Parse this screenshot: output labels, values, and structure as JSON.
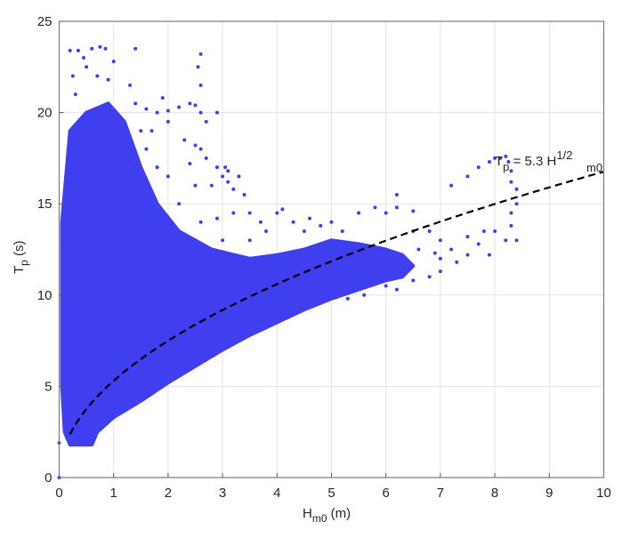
{
  "chart_data": {
    "type": "scatter",
    "title": "",
    "xlabel": {
      "main": "H",
      "sub": "m0",
      "unit": " (m)"
    },
    "ylabel": {
      "main": "T",
      "sub": "p",
      "unit": " (s)"
    },
    "xlim": [
      0,
      10
    ],
    "ylim": [
      0,
      25
    ],
    "xticks": [
      "0",
      "1",
      "2",
      "3",
      "4",
      "5",
      "6",
      "7",
      "8",
      "9",
      "10"
    ],
    "yticks": [
      "0",
      "5",
      "10",
      "15",
      "20",
      "25"
    ],
    "grid": true,
    "point_color": "#3f3ff0",
    "dense_region": [
      [
        0.05,
        5
      ],
      [
        0.05,
        14
      ],
      [
        0.2,
        19
      ],
      [
        0.5,
        20
      ],
      [
        0.9,
        20.5
      ],
      [
        1.2,
        19.5
      ],
      [
        1.5,
        17
      ],
      [
        1.8,
        15
      ],
      [
        2.2,
        13.5
      ],
      [
        2.8,
        12.5
      ],
      [
        3.5,
        12
      ],
      [
        4,
        12.2
      ],
      [
        4.5,
        12.5
      ],
      [
        5,
        13
      ],
      [
        5.5,
        12.8
      ],
      [
        6,
        12.5
      ],
      [
        6.3,
        12.2
      ],
      [
        6.5,
        11.6
      ],
      [
        6.3,
        11
      ],
      [
        6,
        10.8
      ],
      [
        5.5,
        10.3
      ],
      [
        5,
        9.8
      ],
      [
        4.5,
        9.2
      ],
      [
        4,
        8.5
      ],
      [
        3.5,
        7.8
      ],
      [
        3,
        7
      ],
      [
        2.5,
        6.1
      ],
      [
        2,
        5.2
      ],
      [
        1.5,
        4.2
      ],
      [
        1,
        3.3
      ],
      [
        0.7,
        2.5
      ],
      [
        0.6,
        1.8
      ],
      [
        0.2,
        1.8
      ],
      [
        0.1,
        2.5
      ]
    ],
    "points": [
      [
        0.2,
        23.4
      ],
      [
        0.35,
        23.4
      ],
      [
        0.45,
        23
      ],
      [
        0.6,
        23.5
      ],
      [
        0.75,
        23.6
      ],
      [
        0.85,
        23.5
      ],
      [
        0.5,
        22.5
      ],
      [
        0.7,
        22
      ],
      [
        1.0,
        22.8
      ],
      [
        1.4,
        23.5
      ],
      [
        1.3,
        21.5
      ],
      [
        1.4,
        20.5
      ],
      [
        1.6,
        20.2
      ],
      [
        1.8,
        20
      ],
      [
        2.0,
        20.1
      ],
      [
        2.2,
        20.3
      ],
      [
        2.4,
        20.5
      ],
      [
        2.6,
        21.5
      ],
      [
        2.55,
        22.5
      ],
      [
        2.6,
        23.2
      ],
      [
        2.5,
        20.4
      ],
      [
        2.6,
        20
      ],
      [
        2.7,
        19.5
      ],
      [
        2.9,
        20
      ],
      [
        1.9,
        20.8
      ],
      [
        2.0,
        19.5
      ],
      [
        0.3,
        21
      ],
      [
        0.25,
        22
      ],
      [
        0.9,
        21.8
      ],
      [
        2.3,
        18.5
      ],
      [
        2.5,
        18.2
      ],
      [
        2.6,
        18
      ],
      [
        2.7,
        17.5
      ],
      [
        2.9,
        17
      ],
      [
        3.05,
        17
      ],
      [
        3.1,
        16.8
      ],
      [
        3.0,
        16.5
      ],
      [
        3.1,
        16.2
      ],
      [
        3.3,
        16.5
      ],
      [
        2.8,
        16
      ],
      [
        3.2,
        15.8
      ],
      [
        3.4,
        15.5
      ],
      [
        3.2,
        14.5
      ],
      [
        3.5,
        14.5
      ],
      [
        3.7,
        14
      ],
      [
        4.0,
        14.5
      ],
      [
        4.1,
        14.7
      ],
      [
        4.3,
        14
      ],
      [
        4.6,
        14.2
      ],
      [
        3.8,
        13.5
      ],
      [
        5.0,
        14
      ],
      [
        5.5,
        14.5
      ],
      [
        5.8,
        14.8
      ],
      [
        6.0,
        14.5
      ],
      [
        6.2,
        14.8
      ],
      [
        6.5,
        14.6
      ],
      [
        6.2,
        15.5
      ],
      [
        6.5,
        13.5
      ],
      [
        6.8,
        13.5
      ],
      [
        7.0,
        13
      ],
      [
        7.2,
        12.5
      ],
      [
        7.0,
        12
      ],
      [
        7.3,
        11.8
      ],
      [
        7.5,
        12.2
      ],
      [
        7.5,
        13.2
      ],
      [
        7.8,
        13.5
      ],
      [
        7.7,
        12.8
      ],
      [
        8.0,
        13.5
      ],
      [
        7.9,
        12.2
      ],
      [
        8.3,
        13.8
      ],
      [
        8.4,
        13
      ],
      [
        8.2,
        13
      ],
      [
        7.2,
        16
      ],
      [
        7.5,
        16.5
      ],
      [
        7.7,
        17
      ],
      [
        7.9,
        17.3
      ],
      [
        8.0,
        17.5
      ],
      [
        8.1,
        17.5
      ],
      [
        8.2,
        17.6
      ],
      [
        8.25,
        17.3
      ],
      [
        8.3,
        16.8
      ],
      [
        8.3,
        16.2
      ],
      [
        8.4,
        15.8
      ],
      [
        8.4,
        15
      ],
      [
        8.3,
        14.5
      ],
      [
        6.8,
        11
      ],
      [
        6.5,
        10.8
      ],
      [
        7.0,
        11.3
      ],
      [
        6.0,
        10.5
      ],
      [
        6.2,
        10.3
      ],
      [
        5.6,
        10.0
      ],
      [
        5.3,
        9.8
      ],
      [
        6.6,
        12.5
      ],
      [
        6.9,
        12.3
      ],
      [
        0.05,
        13
      ],
      [
        0.05,
        11
      ],
      [
        0.1,
        10
      ],
      [
        0.0,
        1.9
      ],
      [
        0.0,
        0
      ],
      [
        0.25,
        1.8
      ],
      [
        0.15,
        3
      ],
      [
        0.1,
        5.2
      ],
      [
        0.1,
        6
      ],
      [
        2.6,
        14
      ],
      [
        2.9,
        14.2
      ],
      [
        3.0,
        13
      ],
      [
        2.2,
        15
      ],
      [
        2.5,
        16
      ],
      [
        2.0,
        16.5
      ],
      [
        1.8,
        17
      ],
      [
        1.6,
        18
      ],
      [
        1.7,
        19
      ],
      [
        1.5,
        19
      ],
      [
        2.4,
        17.2
      ],
      [
        3.5,
        13
      ],
      [
        4.5,
        13.5
      ],
      [
        4.8,
        13.8
      ],
      [
        5.2,
        13.5
      ]
    ],
    "fit": {
      "formula": "Tp = 5.3 * Hm0^(1/2)",
      "coefficient": 5.3,
      "exponent": 0.5,
      "x_range": [
        0.2,
        10
      ],
      "style": "dashed",
      "color": "#000000",
      "label": {
        "lhs": "T",
        "lhs_sub": "p",
        "eq": " = 5.3 H",
        "sub": "m0",
        "sup": "1/2"
      }
    }
  }
}
